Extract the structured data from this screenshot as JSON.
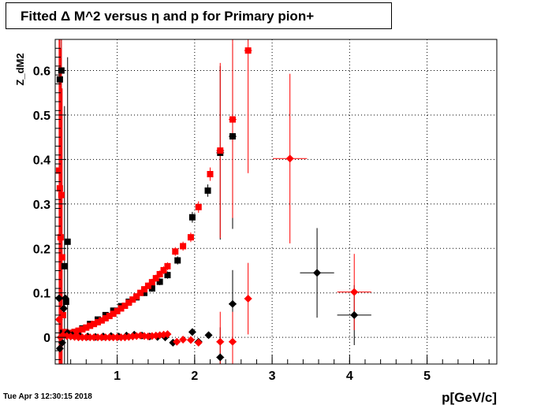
{
  "title": "Fitted Δ M^2 versus η and p for Primary pion+",
  "timestamp": "Tue Apr  3 12:30:15 2018",
  "chart_data": {
    "type": "scatter",
    "title": "Fitted Δ M^2 versus η and p for Primary pion+",
    "xlabel": "p[GeV/c]",
    "ylabel": "Z_dM2",
    "xlim": [
      0.2,
      5.9
    ],
    "ylim": [
      -0.06,
      0.67
    ],
    "x_ticks": [
      1,
      2,
      3,
      4,
      5
    ],
    "y_ticks": [
      0,
      0.1,
      0.2,
      0.3,
      0.4,
      0.5,
      0.6
    ],
    "grid": true,
    "colors": {
      "black": "#000000",
      "red": "#ff0000"
    },
    "series": [
      {
        "marker": "square",
        "color": "#000000",
        "points": [
          {
            "x": 0.26,
            "y": 0.58
          },
          {
            "x": 0.28,
            "y": 0.6
          },
          {
            "x": 0.32,
            "y": 0.16
          },
          {
            "x": 0.36,
            "y": 0.215
          },
          {
            "x": 0.3,
            "y": 0.01
          },
          {
            "x": 0.34,
            "y": 0.08
          },
          {
            "x": 0.45,
            "y": 0.012
          },
          {
            "x": 0.55,
            "y": 0.02
          },
          {
            "x": 0.65,
            "y": 0.03
          },
          {
            "x": 0.75,
            "y": 0.04
          },
          {
            "x": 0.85,
            "y": 0.05
          },
          {
            "x": 0.95,
            "y": 0.06
          },
          {
            "x": 1.05,
            "y": 0.07
          },
          {
            "x": 1.15,
            "y": 0.08
          },
          {
            "x": 1.25,
            "y": 0.09
          },
          {
            "x": 1.35,
            "y": 0.1
          },
          {
            "x": 1.45,
            "y": 0.11
          },
          {
            "x": 1.55,
            "y": 0.125
          },
          {
            "x": 1.65,
            "y": 0.14
          },
          {
            "x": 1.78,
            "y": 0.173
          },
          {
            "x": 1.97,
            "y": 0.27
          },
          {
            "x": 2.17,
            "y": 0.33
          },
          {
            "x": 2.33,
            "y": 0.415
          },
          {
            "x": 2.49,
            "y": 0.452
          }
        ]
      },
      {
        "marker": "square",
        "color": "#ff0000",
        "points": [
          {
            "x": 0.25,
            "y": 0.375
          },
          {
            "x": 0.26,
            "y": 0.335
          },
          {
            "x": 0.28,
            "y": 0.32
          },
          {
            "x": 0.27,
            "y": 0.225
          },
          {
            "x": 0.29,
            "y": 0.18
          },
          {
            "x": 0.3,
            "y": 0.05
          },
          {
            "x": 0.33,
            "y": 0.012
          },
          {
            "x": 0.4,
            "y": 0.01
          },
          {
            "x": 0.45,
            "y": 0.012
          },
          {
            "x": 0.5,
            "y": 0.015
          },
          {
            "x": 0.55,
            "y": 0.018
          },
          {
            "x": 0.6,
            "y": 0.022
          },
          {
            "x": 0.65,
            "y": 0.026
          },
          {
            "x": 0.7,
            "y": 0.03
          },
          {
            "x": 0.75,
            "y": 0.034
          },
          {
            "x": 0.8,
            "y": 0.038
          },
          {
            "x": 0.85,
            "y": 0.043
          },
          {
            "x": 0.9,
            "y": 0.048
          },
          {
            "x": 0.95,
            "y": 0.053
          },
          {
            "x": 1.0,
            "y": 0.059
          },
          {
            "x": 1.05,
            "y": 0.065
          },
          {
            "x": 1.1,
            "y": 0.071
          },
          {
            "x": 1.15,
            "y": 0.078
          },
          {
            "x": 1.2,
            "y": 0.085
          },
          {
            "x": 1.25,
            "y": 0.092
          },
          {
            "x": 1.3,
            "y": 0.1
          },
          {
            "x": 1.35,
            "y": 0.108
          },
          {
            "x": 1.4,
            "y": 0.116
          },
          {
            "x": 1.45,
            "y": 0.124
          },
          {
            "x": 1.5,
            "y": 0.133
          },
          {
            "x": 1.55,
            "y": 0.142
          },
          {
            "x": 1.6,
            "y": 0.151
          },
          {
            "x": 1.65,
            "y": 0.16
          },
          {
            "x": 1.75,
            "y": 0.193
          },
          {
            "x": 1.85,
            "y": 0.205
          },
          {
            "x": 1.95,
            "y": 0.225
          },
          {
            "x": 2.05,
            "y": 0.293
          },
          {
            "x": 2.2,
            "y": 0.367
          },
          {
            "x": 2.33,
            "y": 0.42
          },
          {
            "x": 2.49,
            "y": 0.49
          },
          {
            "x": 2.69,
            "y": 0.645
          }
        ]
      },
      {
        "marker": "diamond",
        "color": "#000000",
        "points": [
          {
            "x": 0.25,
            "y": 0.088
          },
          {
            "x": 0.26,
            "y": -0.025
          },
          {
            "x": 0.29,
            "y": -0.012
          },
          {
            "x": 0.31,
            "y": 0.065
          },
          {
            "x": 0.33,
            "y": 0.088
          },
          {
            "x": 0.36,
            "y": 0.01
          },
          {
            "x": 0.42,
            "y": 0.005
          },
          {
            "x": 0.52,
            "y": 0.003
          },
          {
            "x": 0.62,
            "y": 0.002
          },
          {
            "x": 0.72,
            "y": 0.001
          },
          {
            "x": 0.82,
            "y": 0.002
          },
          {
            "x": 0.92,
            "y": 0.003
          },
          {
            "x": 1.02,
            "y": 0.002
          },
          {
            "x": 1.12,
            "y": 0.004
          },
          {
            "x": 1.22,
            "y": 0.006
          },
          {
            "x": 1.32,
            "y": 0.004
          },
          {
            "x": 1.42,
            "y": 0.002
          },
          {
            "x": 1.52,
            "y": 0.001
          },
          {
            "x": 1.62,
            "y": 0.0
          },
          {
            "x": 1.72,
            "y": -0.012
          },
          {
            "x": 1.97,
            "y": 0.012
          },
          {
            "x": 2.05,
            "y": -0.01
          },
          {
            "x": 2.18,
            "y": 0.005
          },
          {
            "x": 2.33,
            "y": -0.045
          },
          {
            "x": 2.49,
            "y": 0.075
          },
          {
            "x": 3.58,
            "y": 0.145
          },
          {
            "x": 4.06,
            "y": 0.05
          }
        ]
      },
      {
        "marker": "diamond",
        "color": "#ff0000",
        "points": [
          {
            "x": 0.25,
            "y": 0.04
          },
          {
            "x": 0.27,
            "y": 0.0
          },
          {
            "x": 0.3,
            "y": 0.005
          },
          {
            "x": 0.35,
            "y": 0.003
          },
          {
            "x": 0.4,
            "y": 0.002
          },
          {
            "x": 0.45,
            "y": 0.001
          },
          {
            "x": 0.5,
            "y": 0.0
          },
          {
            "x": 0.55,
            "y": 0.0
          },
          {
            "x": 0.6,
            "y": 0.0
          },
          {
            "x": 0.65,
            "y": 0.0
          },
          {
            "x": 0.7,
            "y": 0.0
          },
          {
            "x": 0.75,
            "y": 0.0
          },
          {
            "x": 0.8,
            "y": 0.0
          },
          {
            "x": 0.85,
            "y": 0.0
          },
          {
            "x": 0.9,
            "y": 0.0
          },
          {
            "x": 0.95,
            "y": 0.0
          },
          {
            "x": 1.0,
            "y": 0.0
          },
          {
            "x": 1.05,
            "y": 0.0
          },
          {
            "x": 1.1,
            "y": 0.0
          },
          {
            "x": 1.15,
            "y": 0.001
          },
          {
            "x": 1.2,
            "y": 0.002
          },
          {
            "x": 1.25,
            "y": 0.003
          },
          {
            "x": 1.3,
            "y": 0.004
          },
          {
            "x": 1.35,
            "y": 0.003
          },
          {
            "x": 1.4,
            "y": 0.002
          },
          {
            "x": 1.45,
            "y": 0.003
          },
          {
            "x": 1.5,
            "y": 0.004
          },
          {
            "x": 1.55,
            "y": 0.005
          },
          {
            "x": 1.6,
            "y": 0.006
          },
          {
            "x": 1.65,
            "y": 0.007
          },
          {
            "x": 1.77,
            "y": -0.01
          },
          {
            "x": 1.85,
            "y": -0.005
          },
          {
            "x": 1.95,
            "y": -0.006
          },
          {
            "x": 2.05,
            "y": -0.012
          },
          {
            "x": 2.33,
            "y": -0.01
          },
          {
            "x": 2.49,
            "y": -0.01
          },
          {
            "x": 2.69,
            "y": 0.087
          },
          {
            "x": 3.23,
            "y": 0.402
          },
          {
            "x": 4.06,
            "y": 0.102
          }
        ]
      }
    ]
  }
}
